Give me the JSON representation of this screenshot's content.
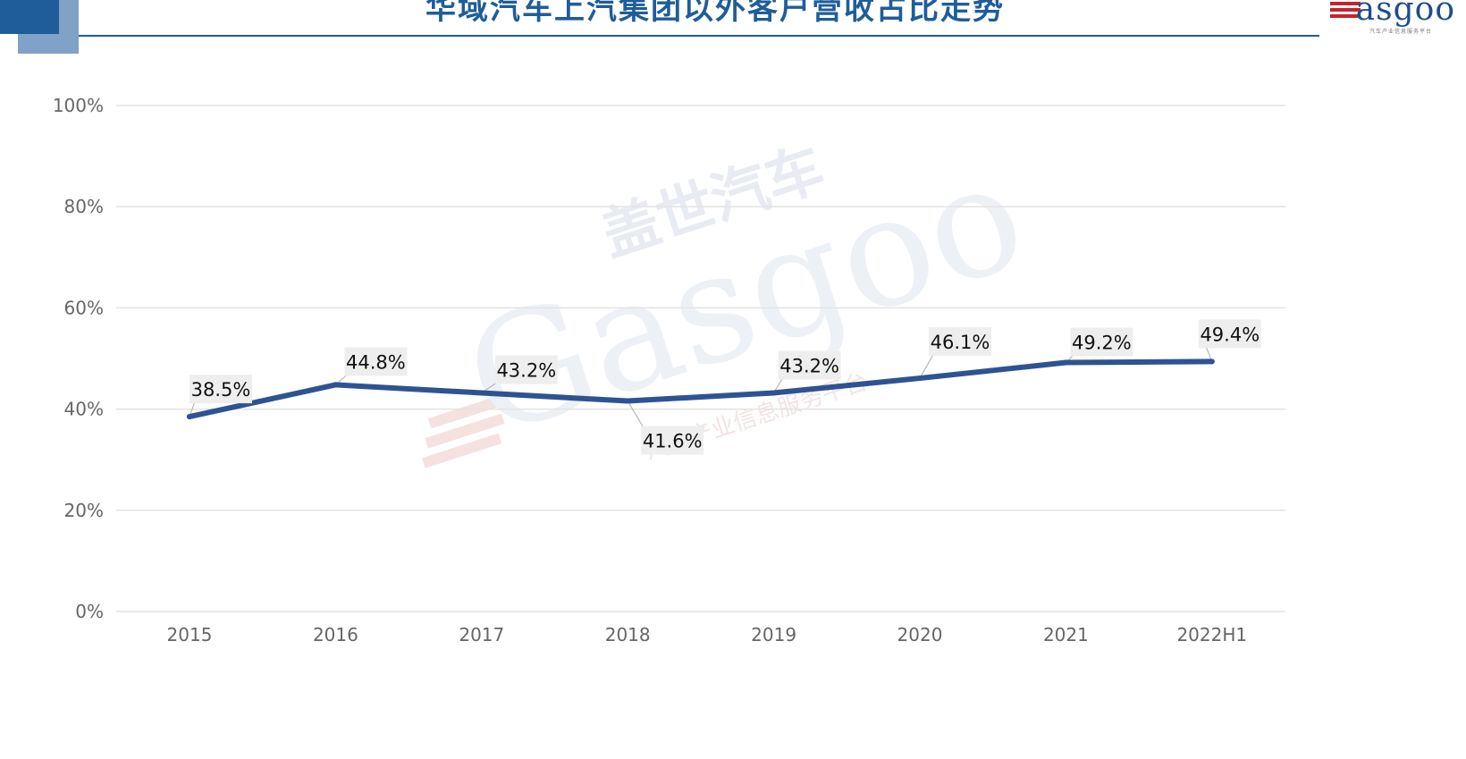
{
  "header": {
    "title": "华域汽车上汽集团以外客户营收占比走势",
    "logo_text": "asgoo",
    "logo_subtitle": "汽车产业信息服务平台"
  },
  "watermark": {
    "cn": "盖世汽车",
    "en": "Gasgoo",
    "sub": "汽车产业信息服务平台"
  },
  "colors": {
    "accent": "#1f5d99",
    "series_line": "#2e5394",
    "grid": "#e3e3e3",
    "logo_red": "#c8232c"
  },
  "chart_data": {
    "type": "line",
    "title": "华域汽车上汽集团以外客户营收占比走势",
    "xlabel": "",
    "ylabel": "",
    "categories": [
      "2015",
      "2016",
      "2017",
      "2018",
      "2019",
      "2020",
      "2021",
      "2022H1"
    ],
    "series": [
      {
        "name": "上汽集团以外客户营收占比",
        "values": [
          38.5,
          44.8,
          43.2,
          41.6,
          43.2,
          46.1,
          49.2,
          49.4
        ],
        "labels": [
          "38.5%",
          "44.8%",
          "43.2%",
          "41.6%",
          "43.2%",
          "46.1%",
          "49.2%",
          "49.4%"
        ]
      }
    ],
    "ylim": [
      0,
      100
    ],
    "yticks": [
      0,
      20,
      40,
      60,
      80,
      100
    ],
    "ytick_labels": [
      "0%",
      "20%",
      "40%",
      "60%",
      "80%",
      "100%"
    ],
    "grid": true,
    "legend": "none"
  }
}
